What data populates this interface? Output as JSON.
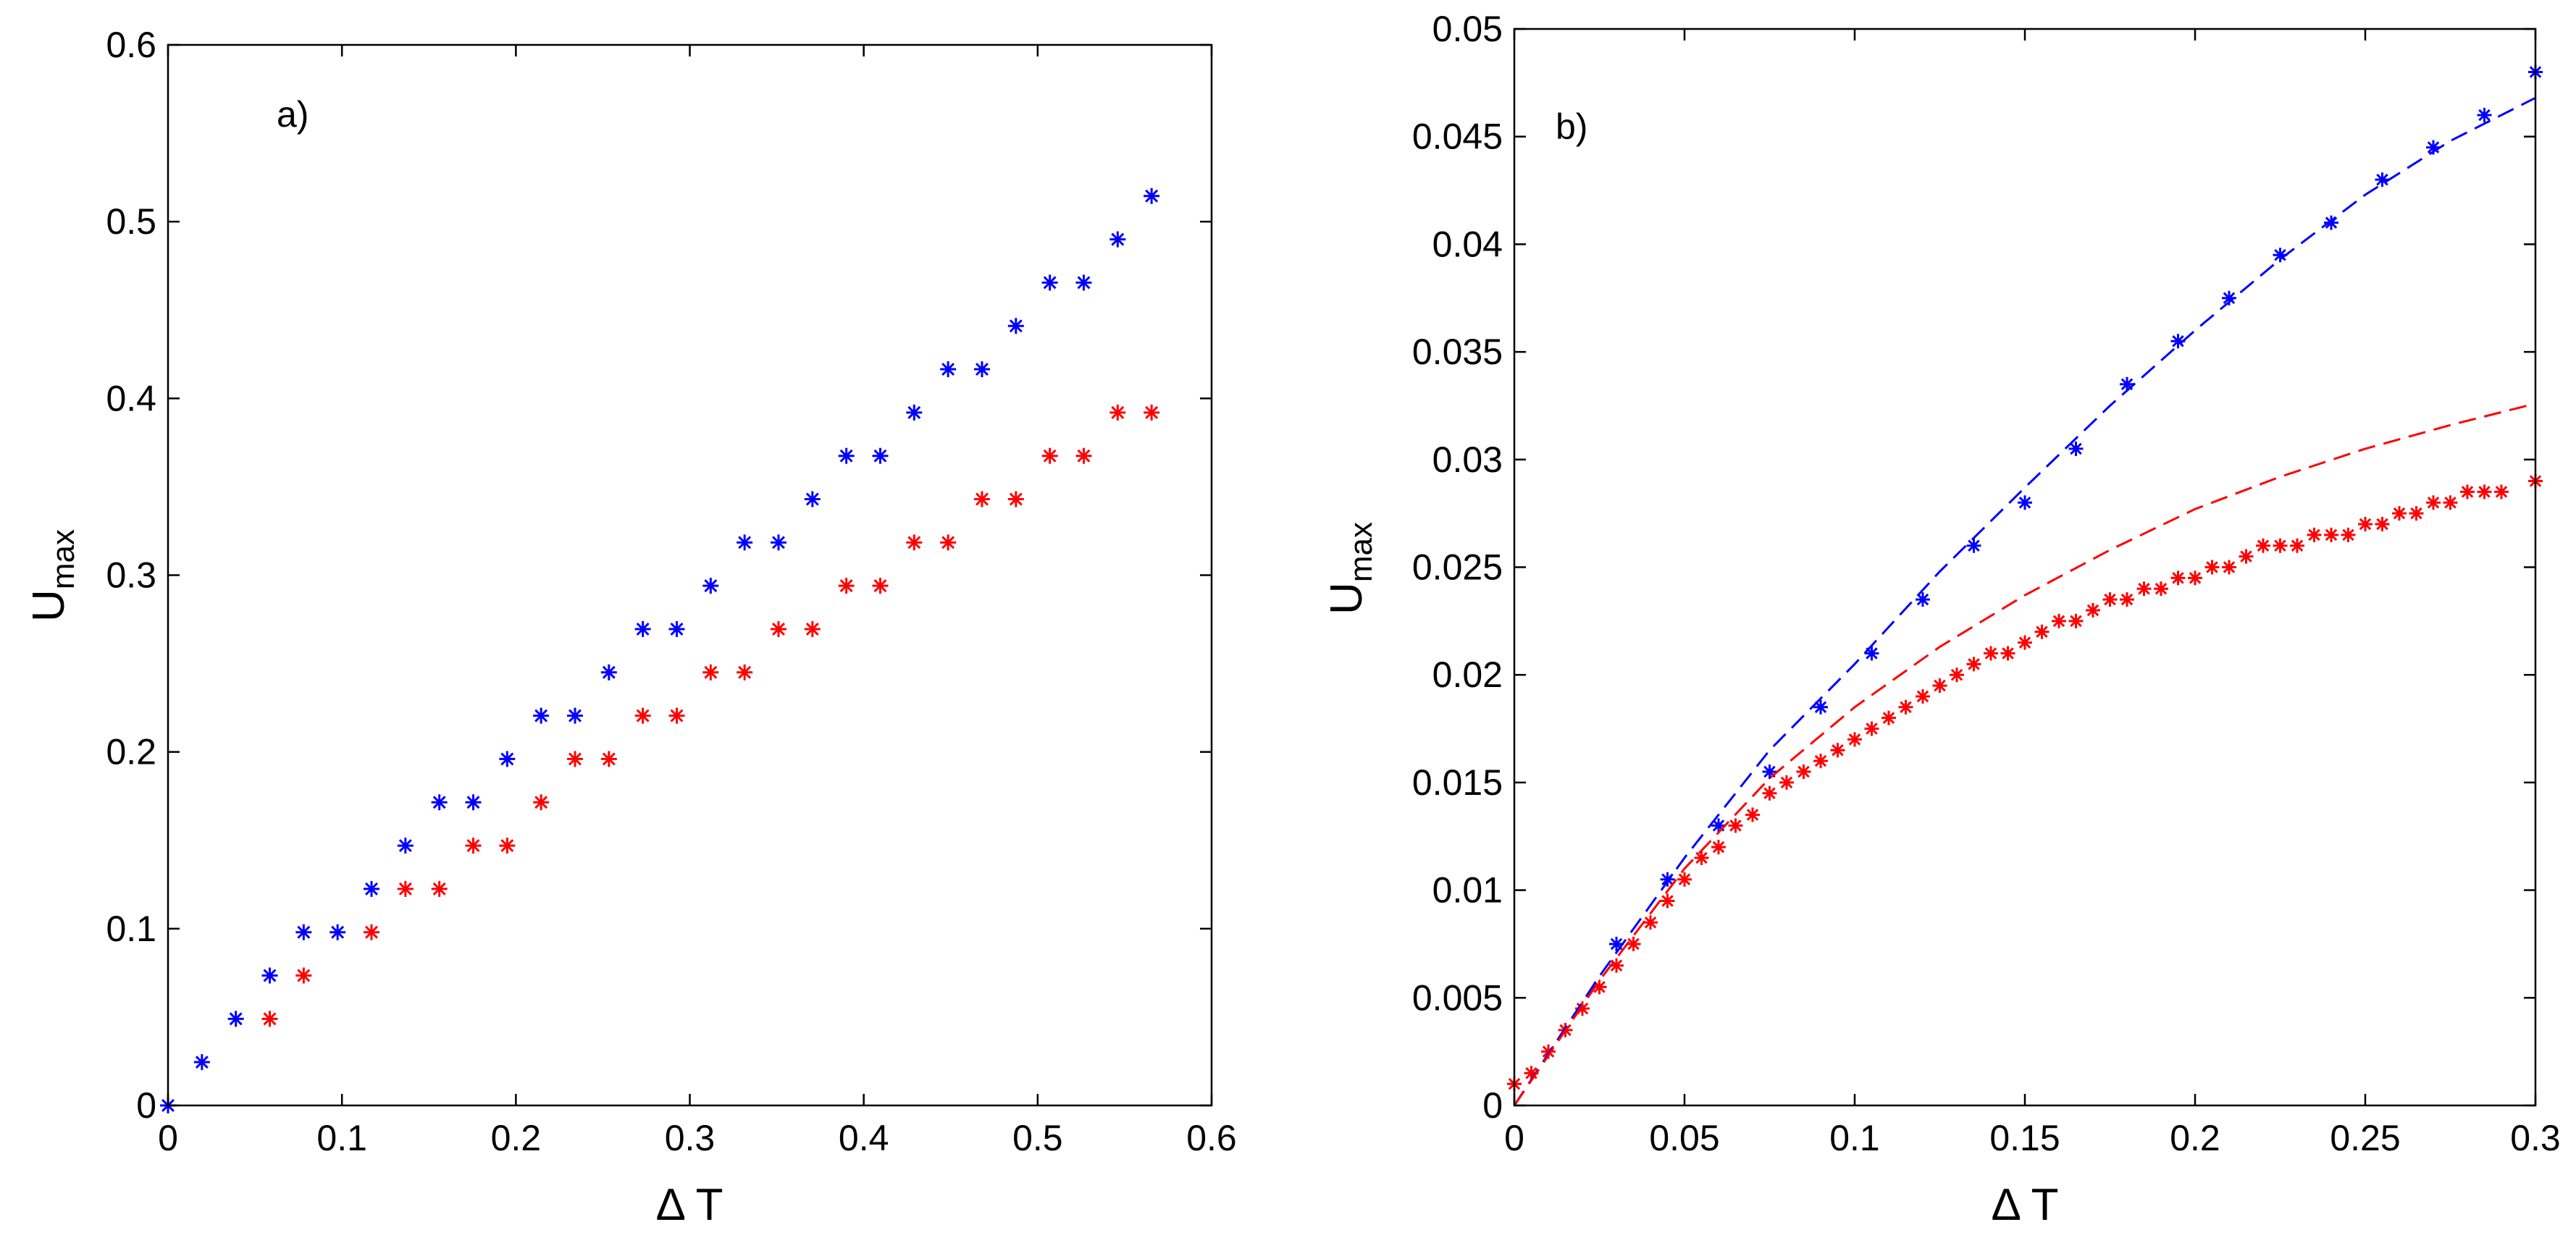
{
  "chart_data": [
    {
      "type": "scatter",
      "panel_label": "a)",
      "xlabel": "Δ T",
      "ylabel": "U",
      "ylabel_sub": "max",
      "xlim": [
        0,
        0.6
      ],
      "ylim": [
        0,
        0.6
      ],
      "xticks": [
        0,
        0.1,
        0.2,
        0.3,
        0.4,
        0.5,
        0.6
      ],
      "xtick_labels": [
        "0",
        "0.1",
        "0.2",
        "0.3",
        "0.4",
        "0.5",
        "0.6"
      ],
      "yticks": [
        0,
        0.1,
        0.2,
        0.3,
        0.4,
        0.5,
        0.6
      ],
      "ytick_labels": [
        "0",
        "0.1",
        "0.2",
        "0.3",
        "0.4",
        "0.5",
        "0.6"
      ],
      "grid": false,
      "series": [
        {
          "name": "blue",
          "color": "#0000ff",
          "marker": "asterisk",
          "x": [
            0,
            0.0195,
            0.039,
            0.0585,
            0.078,
            0.0975,
            0.117,
            0.1365,
            0.156,
            0.1755,
            0.195,
            0.2145,
            0.234,
            0.2535,
            0.273,
            0.2925,
            0.312,
            0.3315,
            0.351,
            0.3705,
            0.39,
            0.4095,
            0.429,
            0.4485,
            0.468,
            0.4875,
            0.507,
            0.5265,
            0.546,
            0.5655
          ],
          "y": [
            0,
            0.0245,
            0.049,
            0.0735,
            0.098,
            0.098,
            0.1225,
            0.147,
            0.1715,
            0.1715,
            0.196,
            0.2205,
            0.2205,
            0.245,
            0.2695,
            0.2695,
            0.294,
            0.3185,
            0.3185,
            0.343,
            0.3675,
            0.3675,
            0.392,
            0.4165,
            0.4165,
            0.441,
            0.4655,
            0.4655,
            0.49,
            0.5145
          ]
        },
        {
          "name": "red",
          "color": "#ff0000",
          "marker": "asterisk",
          "x": [
            0.0585,
            0.078,
            0.117,
            0.1365,
            0.156,
            0.1755,
            0.195,
            0.2145,
            0.234,
            0.2535,
            0.273,
            0.2925,
            0.312,
            0.3315,
            0.351,
            0.3705,
            0.39,
            0.4095,
            0.429,
            0.4485,
            0.468,
            0.4875,
            0.507,
            0.5265,
            0.546,
            0.5655
          ],
          "y": [
            0.049,
            0.0735,
            0.098,
            0.1225,
            0.1225,
            0.147,
            0.147,
            0.1715,
            0.196,
            0.196,
            0.2205,
            0.2205,
            0.245,
            0.245,
            0.2695,
            0.2695,
            0.294,
            0.294,
            0.3185,
            0.3185,
            0.343,
            0.343,
            0.3675,
            0.3675,
            0.392,
            0.392
          ]
        }
      ]
    },
    {
      "type": "scatter",
      "panel_label": "b)",
      "xlabel": "Δ T",
      "ylabel": "U",
      "ylabel_sub": "max",
      "xlim": [
        0,
        0.3
      ],
      "ylim": [
        0,
        0.05
      ],
      "xticks": [
        0,
        0.05,
        0.1,
        0.15,
        0.2,
        0.25,
        0.3
      ],
      "xtick_labels": [
        "0",
        "0.05",
        "0.1",
        "0.15",
        "0.2",
        "0.25",
        "0.3"
      ],
      "yticks": [
        0,
        0.005,
        0.01,
        0.015,
        0.02,
        0.025,
        0.03,
        0.035,
        0.04,
        0.045,
        0.05
      ],
      "ytick_labels": [
        "0",
        "0.005",
        "0.01",
        "0.015",
        "0.02",
        "0.025",
        "0.03",
        "0.035",
        "0.04",
        "0.045",
        "0.05"
      ],
      "grid": false,
      "series": [
        {
          "name": "blue markers",
          "color": "#0000ff",
          "marker": "asterisk",
          "x": [
            0.03,
            0.045,
            0.06,
            0.075,
            0.09,
            0.105,
            0.12,
            0.135,
            0.15,
            0.165,
            0.18,
            0.195,
            0.21,
            0.225,
            0.24,
            0.255,
            0.27,
            0.285,
            0.3
          ],
          "y": [
            0.0075,
            0.0105,
            0.013,
            0.0155,
            0.0185,
            0.021,
            0.0235,
            0.026,
            0.028,
            0.0305,
            0.0335,
            0.0355,
            0.0375,
            0.0395,
            0.041,
            0.043,
            0.0445,
            0.046,
            0.048
          ]
        },
        {
          "name": "red markers",
          "color": "#ff0000",
          "marker": "asterisk",
          "x": [
            0,
            0.005,
            0.01,
            0.015,
            0.02,
            0.025,
            0.03,
            0.035,
            0.04,
            0.045,
            0.05,
            0.055,
            0.06,
            0.065,
            0.07,
            0.075,
            0.08,
            0.085,
            0.09,
            0.095,
            0.1,
            0.105,
            0.11,
            0.115,
            0.12,
            0.125,
            0.13,
            0.135,
            0.14,
            0.145,
            0.15,
            0.155,
            0.16,
            0.165,
            0.17,
            0.175,
            0.18,
            0.185,
            0.19,
            0.195,
            0.2,
            0.205,
            0.21,
            0.215,
            0.22,
            0.225,
            0.23,
            0.235,
            0.24,
            0.245,
            0.25,
            0.255,
            0.26,
            0.265,
            0.27,
            0.275,
            0.28,
            0.285,
            0.29,
            0.3
          ],
          "y": [
            0.001,
            0.0015,
            0.0025,
            0.0035,
            0.0045,
            0.0055,
            0.0065,
            0.0075,
            0.0085,
            0.0095,
            0.0105,
            0.0115,
            0.012,
            0.013,
            0.0135,
            0.0145,
            0.015,
            0.0155,
            0.016,
            0.0165,
            0.017,
            0.0175,
            0.018,
            0.0185,
            0.019,
            0.0195,
            0.02,
            0.0205,
            0.021,
            0.021,
            0.0215,
            0.022,
            0.0225,
            0.0225,
            0.023,
            0.0235,
            0.0235,
            0.024,
            0.024,
            0.0245,
            0.0245,
            0.025,
            0.025,
            0.0255,
            0.026,
            0.026,
            0.026,
            0.0265,
            0.0265,
            0.0265,
            0.027,
            0.027,
            0.0275,
            0.0275,
            0.028,
            0.028,
            0.0285,
            0.0285,
            0.0285,
            0.029
          ]
        },
        {
          "name": "blue dashed",
          "color": "#0000ff",
          "style": "dashed",
          "x": [
            0,
            0.025,
            0.05,
            0.075,
            0.1,
            0.125,
            0.15,
            0.175,
            0.2,
            0.225,
            0.25,
            0.275,
            0.3
          ],
          "y": [
            0,
            0.006,
            0.0115,
            0.0165,
            0.0205,
            0.0248,
            0.0287,
            0.0325,
            0.036,
            0.0393,
            0.0423,
            0.0448,
            0.0468
          ]
        },
        {
          "name": "red dashed",
          "color": "#ff0000",
          "style": "dashed",
          "x": [
            0,
            0.025,
            0.05,
            0.075,
            0.1,
            0.125,
            0.15,
            0.175,
            0.2,
            0.225,
            0.25,
            0.275,
            0.3
          ],
          "y": [
            0,
            0.0058,
            0.011,
            0.0152,
            0.0185,
            0.0213,
            0.0237,
            0.0258,
            0.0277,
            0.0292,
            0.0305,
            0.0316,
            0.0326
          ]
        }
      ]
    }
  ]
}
